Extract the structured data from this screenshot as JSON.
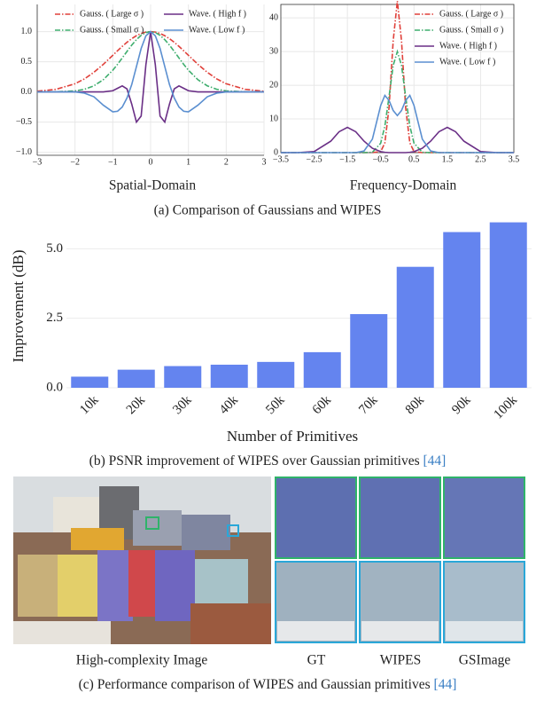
{
  "chart_data": [
    {
      "type": "line",
      "xlabel": "Spatial-Domain",
      "x": [
        -3,
        -2.5,
        -2,
        -1.75,
        -1.5,
        -1.25,
        -1,
        -0.875,
        -0.75,
        -0.625,
        -0.5,
        -0.375,
        -0.25,
        -0.125,
        0,
        0.125,
        0.25,
        0.375,
        0.5,
        0.625,
        0.75,
        0.875,
        1,
        1.25,
        1.5,
        1.75,
        2,
        2.5,
        3
      ],
      "series": [
        {
          "name": "Gauss. ( Large σ )",
          "color": "#e0403a",
          "linestyle": "dashdot",
          "values": [
            0.011,
            0.044,
            0.135,
            0.216,
            0.325,
            0.458,
            0.607,
            0.682,
            0.755,
            0.823,
            0.882,
            0.932,
            0.969,
            0.992,
            1,
            0.992,
            0.969,
            0.932,
            0.882,
            0.823,
            0.755,
            0.682,
            0.607,
            0.458,
            0.325,
            0.216,
            0.135,
            0.044,
            0.011
          ]
        },
        {
          "name": "Gauss. ( Small σ )",
          "color": "#3fae6e",
          "linestyle": "dashdot",
          "values": [
            0,
            0.002,
            0.017,
            0.044,
            0.101,
            0.203,
            0.36,
            0.458,
            0.563,
            0.671,
            0.775,
            0.866,
            0.938,
            0.984,
            1,
            0.984,
            0.938,
            0.866,
            0.775,
            0.671,
            0.563,
            0.458,
            0.36,
            0.203,
            0.101,
            0.044,
            0.017,
            0.002,
            0
          ]
        },
        {
          "name": "Wave. ( High f )",
          "color": "#6a2f86",
          "linestyle": "solid",
          "values": [
            0,
            0,
            0,
            0,
            0,
            0,
            0.02,
            0.06,
            0.1,
            0.05,
            -0.2,
            -0.5,
            -0.4,
            0.45,
            1,
            0.45,
            -0.4,
            -0.5,
            -0.2,
            0.05,
            0.1,
            0.06,
            0.02,
            0,
            0,
            0,
            0,
            0,
            0
          ]
        },
        {
          "name": "Wave. ( Low f )",
          "color": "#5b8fd0",
          "linestyle": "solid",
          "values": [
            0,
            0,
            0,
            -0.02,
            -0.08,
            -0.22,
            -0.33,
            -0.32,
            -0.25,
            -0.1,
            0.12,
            0.42,
            0.72,
            0.93,
            1,
            0.93,
            0.72,
            0.42,
            0.12,
            -0.1,
            -0.25,
            -0.32,
            -0.33,
            -0.22,
            -0.08,
            -0.02,
            0,
            0,
            0
          ]
        }
      ],
      "xlim": [
        -3,
        3
      ],
      "xticks": [
        {
          "value": -3,
          "label": "−3"
        },
        {
          "value": -2,
          "label": "−2"
        },
        {
          "value": -1,
          "label": "−1"
        },
        0,
        1,
        2,
        3
      ],
      "ylim": [
        -1.05,
        1.45
      ],
      "yticks": [
        {
          "value": -1,
          "label": "−1.0"
        },
        {
          "value": -0.5,
          "label": "−0.5"
        },
        {
          "value": 0,
          "label": "0.0"
        },
        0.5,
        {
          "value": 1,
          "label": "1.0"
        }
      ],
      "grid": true
    },
    {
      "type": "line",
      "xlabel": "Frequency-Domain",
      "x": [
        -3.5,
        -3,
        -2.5,
        -2,
        -1.75,
        -1.5,
        -1.25,
        -1,
        -0.75,
        -0.5,
        -0.375,
        -0.25,
        -0.125,
        0,
        0.125,
        0.25,
        0.375,
        0.5,
        0.75,
        1,
        1.25,
        1.5,
        1.75,
        2,
        2.5,
        3,
        3.5
      ],
      "series": [
        {
          "name": "Gauss. ( Large σ )",
          "color": "#e0403a",
          "linestyle": "dashdot",
          "values": [
            0,
            0,
            0,
            0,
            0,
            0,
            0,
            0,
            0,
            0.3,
            2.9,
            13.3,
            33.2,
            45,
            33.2,
            13.3,
            2.9,
            0.3,
            0,
            0,
            0,
            0,
            0,
            0,
            0,
            0,
            0
          ]
        },
        {
          "name": "Gauss. ( Small σ )",
          "color": "#3fae6e",
          "linestyle": "dashdot",
          "values": [
            0,
            0,
            0,
            0,
            0,
            0,
            0,
            0,
            0.1,
            2.8,
            7.9,
            16.6,
            25.9,
            30,
            25.9,
            16.6,
            7.9,
            2.8,
            0.1,
            0,
            0,
            0,
            0,
            0,
            0,
            0,
            0
          ]
        },
        {
          "name": "Wave. ( High f )",
          "color": "#6a2f86",
          "linestyle": "solid",
          "values": [
            0,
            0,
            0.3,
            3.4,
            6.2,
            7.5,
            6.2,
            3.4,
            1.3,
            0.3,
            0.1,
            0,
            0,
            0,
            0,
            0,
            0.1,
            0.3,
            1.3,
            3.4,
            6.2,
            7.5,
            6.2,
            3.4,
            0.3,
            0,
            0
          ]
        },
        {
          "name": "Wave. ( Low f )",
          "color": "#5b8fd0",
          "linestyle": "solid",
          "values": [
            0,
            0,
            0,
            0,
            0,
            0,
            0,
            0.5,
            4,
            14,
            17,
            15.5,
            12.5,
            11,
            12.5,
            15.5,
            17,
            14,
            4,
            0.5,
            0,
            0,
            0,
            0,
            0,
            0,
            0
          ]
        }
      ],
      "xlim": [
        -3.5,
        3.5
      ],
      "xticks": [
        {
          "value": -3.5,
          "label": "−3.5"
        },
        {
          "value": -2.5,
          "label": "−2.5"
        },
        {
          "value": -1.5,
          "label": "−1.5"
        },
        {
          "value": -0.5,
          "label": "−0.5"
        },
        0.5,
        1.5,
        2.5,
        3.5
      ],
      "ylim": [
        0,
        44
      ],
      "yticks": [
        0,
        10,
        20,
        30,
        40
      ],
      "grid": true
    },
    {
      "type": "bar",
      "xlabel": "Number of Primitives",
      "ylabel": "Improvement (dB)",
      "categories": [
        "10k",
        "20k",
        "30k",
        "40k",
        "50k",
        "60k",
        "70k",
        "80k",
        "90k",
        "100k"
      ],
      "values": [
        0.4,
        0.65,
        0.78,
        0.83,
        0.93,
        1.28,
        2.65,
        4.35,
        5.6,
        5.95
      ],
      "color": "#6484ef",
      "ylim": [
        0,
        6
      ],
      "yticks": [
        {
          "value": 0,
          "label": "0.0"
        },
        2.5,
        {
          "value": 5,
          "label": "5.0"
        }
      ],
      "grid": true
    }
  ],
  "captions": {
    "a": "(a) Comparison of Gaussians and WIPES",
    "b": "(b) PSNR improvement of WIPES over Gaussian primitives",
    "b_cite": "[44]",
    "c": "(c) Performance comparison of WIPES and Gaussian primitives",
    "c_cite": "[44]"
  },
  "image_labels": [
    "High-complexity Image",
    "GT",
    "WIPES",
    "GSImage"
  ]
}
